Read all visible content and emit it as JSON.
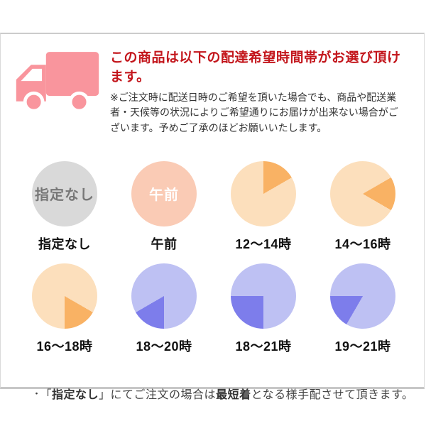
{
  "colors": {
    "truck_pink": "#F9959D",
    "title_red": "#C3161C",
    "border_gray": "#CCCCCC"
  },
  "header": {
    "title": "この商品は以下の配達希望時間帯がお選び頂けます。",
    "description": "※ご注文時に配送日時のご希望を頂いた場合でも、商品や配送業者・天候等の状況によりご希望通りにお届けが出来ない場合がございます。予めご了承のほどお願いいたします。"
  },
  "time_slots": [
    {
      "label": "指定なし",
      "base_color": "#D9D9D9",
      "inner_text": "指定なし",
      "inner_text_color": "#777777"
    },
    {
      "label": "午前",
      "base_color": "#FACBB5",
      "inner_text": "午前",
      "inner_text_color": "#FFFFFF"
    },
    {
      "label": "12〜14時",
      "base_color": "#FCDFBC",
      "wedge_color": "#F9B264",
      "wedge_start": 0,
      "wedge_end": 60
    },
    {
      "label": "14〜16時",
      "base_color": "#FCDFBC",
      "wedge_color": "#F9B264",
      "wedge_start": 60,
      "wedge_end": 120
    },
    {
      "label": "16〜18時",
      "base_color": "#FCDFBC",
      "wedge_color": "#F9B264",
      "wedge_start": 120,
      "wedge_end": 180
    },
    {
      "label": "18〜20時",
      "base_color": "#BEC1F3",
      "wedge_color": "#7D7DEB",
      "wedge_start": 180,
      "wedge_end": 240
    },
    {
      "label": "18〜21時",
      "base_color": "#BEC1F3",
      "wedge_color": "#7D7DEB",
      "wedge_start": 180,
      "wedge_end": 270
    },
    {
      "label": "19〜21時",
      "base_color": "#BEC1F3",
      "wedge_color": "#7D7DEB",
      "wedge_start": 210,
      "wedge_end": 270
    }
  ],
  "note": {
    "bullet": "・",
    "prefix": "「",
    "bold1": "指定なし",
    "mid": "」にてご注文の場合は",
    "bold2": "最短着",
    "suffix": "となる様手配させて頂きます。"
  }
}
